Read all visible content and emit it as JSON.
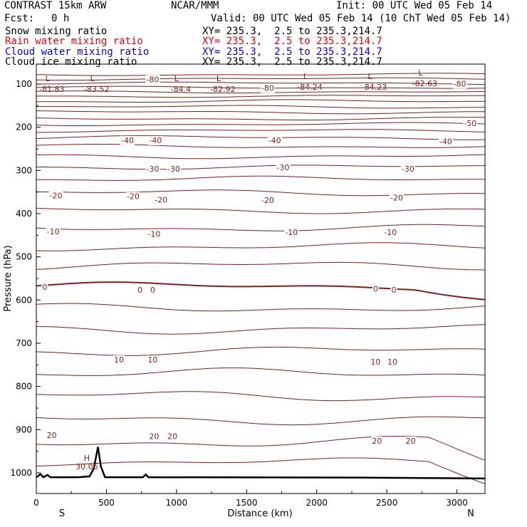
{
  "header": {
    "title_left": "CONTRAST 15km ARW",
    "title_center": "NCAR/MMM",
    "init": "Init: 00 UTC Wed 05 Feb 14",
    "fcst_label": "Fcst:",
    "fcst_value": "0 h",
    "valid": "Valid: 00 UTC Wed 05 Feb 14 (10 ChT Wed 05 Feb 14)"
  },
  "fields": [
    {
      "name": "Snow mixing ratio",
      "xy": "XY= 235.3,  2.5 to 235.3,214.7",
      "color": "#000000"
    },
    {
      "name": "Rain water mixing ratio",
      "xy": "XY= 235.3,  2.5 to 235.3,214.7",
      "color": "#ff0000"
    },
    {
      "name": "Cloud water mixing ratio",
      "xy": "XY= 235.3,  2.5 to 235.3,214.7",
      "color": "#0000ff"
    },
    {
      "name": "Cloud ice mixing ratio",
      "xy": "XY= 235.3,  2.5 to 235.3,214.7",
      "color": "#000000"
    }
  ],
  "chart_data": {
    "type": "line",
    "xlabel": "Distance (km)",
    "ylabel": "Pressure (hPa)",
    "xlim": [
      0,
      3200
    ],
    "ylim": [
      1045,
      60
    ],
    "x_ticks": [
      0,
      500,
      1000,
      1500,
      2000,
      2500,
      3000
    ],
    "y_ticks": [
      100,
      200,
      300,
      400,
      500,
      600,
      700,
      800,
      900,
      1000
    ],
    "x_end_labels": {
      "left": "S",
      "right": "N"
    },
    "contour_color": "#8b1a1a",
    "contours": [
      {
        "p": 78,
        "amp": 3
      },
      {
        "p": 88,
        "amp": 3
      },
      {
        "p": 98,
        "amp": 3
      },
      {
        "p": 108,
        "amp": 3
      },
      {
        "p": 118,
        "amp": 3
      },
      {
        "p": 128,
        "amp": 3
      },
      {
        "p": 140,
        "amp": 4
      },
      {
        "p": 153,
        "amp": 4
      },
      {
        "p": 165,
        "amp": 4
      },
      {
        "p": 180,
        "amp": 4
      },
      {
        "p": 193,
        "amp": 4
      },
      {
        "p": 208,
        "amp": 4
      },
      {
        "p": 224,
        "amp": 5
      },
      {
        "p": 244,
        "amp": 5
      },
      {
        "p": 267,
        "amp": 6
      },
      {
        "p": 292,
        "amp": 6
      },
      {
        "p": 320,
        "amp": 7
      },
      {
        "p": 352,
        "amp": 8
      },
      {
        "p": 392,
        "amp": 8
      },
      {
        "p": 433,
        "amp": 9
      },
      {
        "p": 477,
        "amp": 10
      },
      {
        "p": 520,
        "amp": 11
      },
      {
        "p": 568,
        "amp": 10,
        "bold": true
      },
      {
        "p": 618,
        "amp": 11
      },
      {
        "p": 667,
        "amp": 12
      },
      {
        "p": 718,
        "amp": 12
      },
      {
        "p": 770,
        "amp": 13
      },
      {
        "p": 822,
        "amp": 13
      },
      {
        "p": 876,
        "amp": 13
      },
      {
        "p": 928,
        "amp": 14
      },
      {
        "p": 975,
        "amp": 10
      }
    ],
    "contour_labels": [
      {
        "x": 830,
        "p": 89,
        "text": "-80"
      },
      {
        "x": 1650,
        "p": 109,
        "text": "-80"
      },
      {
        "x": 3020,
        "p": 99,
        "text": "-80"
      },
      {
        "x": 3095,
        "p": 191,
        "text": "-50"
      },
      {
        "x": 650,
        "p": 230,
        "text": "-40"
      },
      {
        "x": 850,
        "p": 230,
        "text": "-40"
      },
      {
        "x": 1700,
        "p": 230,
        "text": "-40"
      },
      {
        "x": 2920,
        "p": 233,
        "text": "-40"
      },
      {
        "x": 830,
        "p": 296,
        "text": "-30"
      },
      {
        "x": 980,
        "p": 296,
        "text": "-30"
      },
      {
        "x": 1760,
        "p": 293,
        "text": "-30"
      },
      {
        "x": 2650,
        "p": 296,
        "text": "-30"
      },
      {
        "x": 140,
        "p": 358,
        "text": "-20"
      },
      {
        "x": 690,
        "p": 360,
        "text": "-20"
      },
      {
        "x": 890,
        "p": 368,
        "text": "-20"
      },
      {
        "x": 1650,
        "p": 369,
        "text": "-20"
      },
      {
        "x": 2570,
        "p": 363,
        "text": "-20"
      },
      {
        "x": 120,
        "p": 441,
        "text": "-10"
      },
      {
        "x": 840,
        "p": 447,
        "text": "-10"
      },
      {
        "x": 1820,
        "p": 443,
        "text": "-10"
      },
      {
        "x": 2525,
        "p": 443,
        "text": "-10"
      },
      {
        "x": 60,
        "p": 570,
        "text": "0"
      },
      {
        "x": 740,
        "p": 576,
        "text": "0"
      },
      {
        "x": 830,
        "p": 576,
        "text": "0"
      },
      {
        "x": 2420,
        "p": 574,
        "text": "0"
      },
      {
        "x": 2550,
        "p": 576,
        "text": "0"
      },
      {
        "x": 590,
        "p": 738,
        "text": "10"
      },
      {
        "x": 830,
        "p": 738,
        "text": "10"
      },
      {
        "x": 2420,
        "p": 743,
        "text": "10"
      },
      {
        "x": 2540,
        "p": 743,
        "text": "10"
      },
      {
        "x": 110,
        "p": 913,
        "text": "20"
      },
      {
        "x": 840,
        "p": 915,
        "text": "20"
      },
      {
        "x": 970,
        "p": 915,
        "text": "20"
      },
      {
        "x": 2430,
        "p": 926,
        "text": "20"
      },
      {
        "x": 2670,
        "p": 926,
        "text": "20"
      }
    ],
    "lows": [
      {
        "x": 80,
        "p": 103,
        "value": "-81.83"
      },
      {
        "x": 400,
        "p": 103,
        "value": "-83.52"
      },
      {
        "x": 1000,
        "p": 103,
        "value": "-84.4"
      },
      {
        "x": 1300,
        "p": 103,
        "value": "-82.92"
      },
      {
        "x": 1920,
        "p": 98,
        "value": "-84.24"
      },
      {
        "x": 2380,
        "p": 98,
        "value": "-84.23"
      },
      {
        "x": 2740,
        "p": 90,
        "value": "-82.63"
      }
    ],
    "highs": [
      {
        "x": 360,
        "p": 985,
        "value": "30.06"
      }
    ],
    "terrain": [
      [
        0,
        1010
      ],
      [
        30,
        1003
      ],
      [
        50,
        1010
      ],
      [
        80,
        1005
      ],
      [
        100,
        1010
      ],
      [
        300,
        1010
      ],
      [
        380,
        1008
      ],
      [
        410,
        990
      ],
      [
        440,
        940
      ],
      [
        460,
        985
      ],
      [
        490,
        1010
      ],
      [
        760,
        1010
      ],
      [
        780,
        1004
      ],
      [
        800,
        1010
      ],
      [
        2400,
        1011
      ],
      [
        3200,
        1013
      ]
    ]
  }
}
